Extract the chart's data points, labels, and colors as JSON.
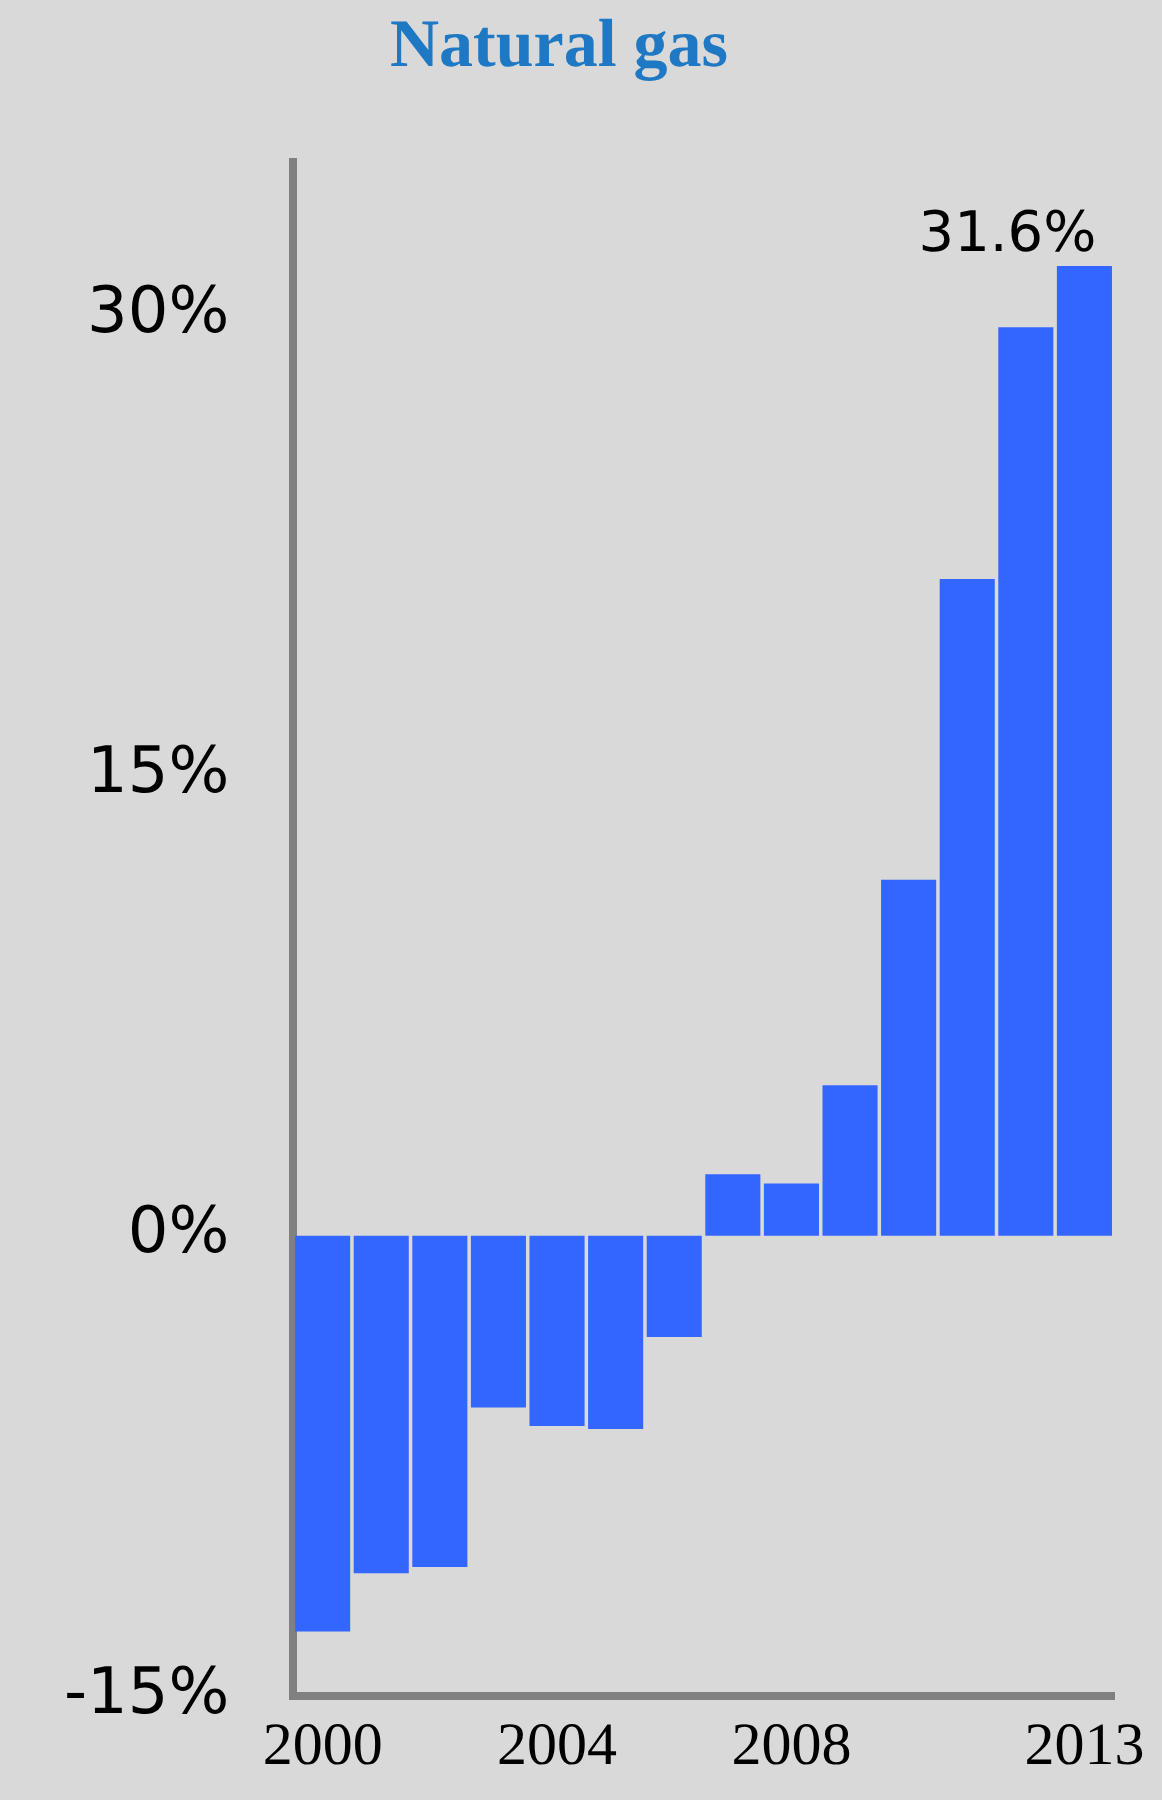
{
  "chart_data": {
    "type": "bar",
    "title": "Natural gas",
    "categories": [
      "2000",
      null,
      null,
      null,
      "2004",
      null,
      null,
      null,
      "2008",
      null,
      null,
      null,
      null,
      "2013"
    ],
    "series": [
      {
        "color": "#3366ff",
        "values": [
          -12.9,
          -11.0,
          -10.8,
          -5.6,
          -6.2,
          -6.3,
          -3.3,
          2.0,
          1.7,
          4.9,
          11.6,
          21.4,
          29.6,
          31.6
        ],
        "value_labels": [
          null,
          null,
          null,
          null,
          null,
          null,
          null,
          null,
          null,
          null,
          null,
          null,
          null,
          "31.6%"
        ]
      }
    ],
    "ylim": [
      -15,
      35
    ],
    "yticks": [
      {
        "value": -15,
        "label": "-15%"
      },
      {
        "value": 0,
        "label": "0%"
      },
      {
        "value": 15,
        "label": "15%"
      },
      {
        "value": 30,
        "label": "30%"
      }
    ],
    "grid": false,
    "legend": false
  }
}
